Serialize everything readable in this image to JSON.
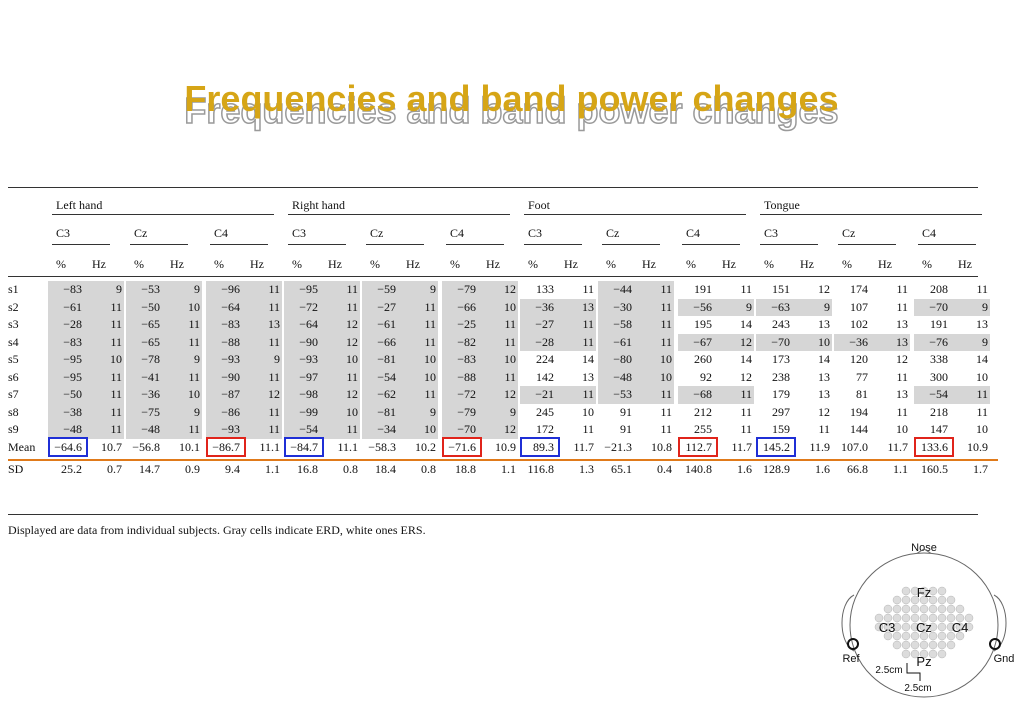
{
  "title": "Frequencies and band power changes",
  "table": {
    "groups": [
      "Left hand",
      "Right hand",
      "Foot",
      "Tongue"
    ],
    "channels": [
      "C3",
      "Cz",
      "C4"
    ],
    "units": [
      "%",
      "Hz"
    ],
    "rows": [
      {
        "label": "s1",
        "values": [
          "−83",
          "9",
          "−53",
          "9",
          "−96",
          "11",
          "−95",
          "11",
          "−59",
          "9",
          "−79",
          "12",
          "133",
          "11",
          "−44",
          "11",
          "191",
          "11",
          "151",
          "12",
          "174",
          "11",
          "208",
          "11"
        ]
      },
      {
        "label": "s2",
        "values": [
          "−61",
          "11",
          "−50",
          "10",
          "−64",
          "11",
          "−72",
          "11",
          "−27",
          "11",
          "−66",
          "10",
          "−36",
          "13",
          "−30",
          "11",
          "−56",
          "9",
          "−63",
          "9",
          "107",
          "11",
          "−70",
          "9"
        ]
      },
      {
        "label": "s3",
        "values": [
          "−28",
          "11",
          "−65",
          "11",
          "−83",
          "13",
          "−64",
          "12",
          "−61",
          "11",
          "−25",
          "11",
          "−27",
          "11",
          "−58",
          "11",
          "195",
          "14",
          "243",
          "13",
          "102",
          "13",
          "191",
          "13"
        ]
      },
      {
        "label": "s4",
        "values": [
          "−83",
          "11",
          "−65",
          "11",
          "−88",
          "11",
          "−90",
          "12",
          "−66",
          "11",
          "−82",
          "11",
          "−28",
          "11",
          "−61",
          "11",
          "−67",
          "12",
          "−70",
          "10",
          "−36",
          "13",
          "−76",
          "9"
        ]
      },
      {
        "label": "s5",
        "values": [
          "−95",
          "10",
          "−78",
          "9",
          "−93",
          "9",
          "−93",
          "10",
          "−81",
          "10",
          "−83",
          "10",
          "224",
          "14",
          "−80",
          "10",
          "260",
          "14",
          "173",
          "14",
          "120",
          "12",
          "338",
          "14"
        ]
      },
      {
        "label": "s6",
        "values": [
          "−95",
          "11",
          "−41",
          "11",
          "−90",
          "11",
          "−97",
          "11",
          "−54",
          "10",
          "−88",
          "11",
          "142",
          "13",
          "−48",
          "10",
          "92",
          "12",
          "238",
          "13",
          "77",
          "11",
          "300",
          "10"
        ]
      },
      {
        "label": "s7",
        "values": [
          "−50",
          "11",
          "−36",
          "10",
          "−87",
          "12",
          "−98",
          "12",
          "−62",
          "11",
          "−72",
          "12",
          "−21",
          "11",
          "−53",
          "11",
          "−68",
          "11",
          "179",
          "13",
          "81",
          "13",
          "−54",
          "11"
        ]
      },
      {
        "label": "s8",
        "values": [
          "−38",
          "11",
          "−75",
          "9",
          "−86",
          "11",
          "−99",
          "10",
          "−81",
          "9",
          "−79",
          "9",
          "245",
          "10",
          "91",
          "11",
          "212",
          "11",
          "297",
          "12",
          "194",
          "11",
          "218",
          "11"
        ]
      },
      {
        "label": "s9",
        "values": [
          "−48",
          "11",
          "−48",
          "11",
          "−93",
          "11",
          "−54",
          "11",
          "−34",
          "10",
          "−70",
          "12",
          "172",
          "11",
          "91",
          "11",
          "255",
          "11",
          "159",
          "11",
          "144",
          "10",
          "147",
          "10"
        ]
      },
      {
        "label": "Mean",
        "values": [
          "−64.6",
          "10.7",
          "−56.8",
          "10.1",
          "−86.7",
          "11.1",
          "−84.7",
          "11.1",
          "−58.3",
          "10.2",
          "−71.6",
          "10.9",
          "89.3",
          "11.7",
          "−21.3",
          "10.8",
          "112.7",
          "11.7",
          "145.2",
          "11.9",
          "107.0",
          "11.7",
          "133.6",
          "10.9"
        ]
      },
      {
        "label": "SD",
        "values": [
          "25.2",
          "0.7",
          "14.7",
          "0.9",
          "9.4",
          "1.1",
          "16.8",
          "0.8",
          "18.4",
          "0.8",
          "18.8",
          "1.1",
          "116.8",
          "1.3",
          "65.1",
          "0.4",
          "140.8",
          "1.6",
          "128.9",
          "1.6",
          "66.8",
          "1.1",
          "160.5",
          "1.7"
        ]
      }
    ],
    "caption": "Displayed are data from individual subjects. Gray cells indicate ERD, white ones ERS."
  },
  "highlights": {
    "blue_color": "#1f2fd6",
    "red_color": "#e0241b",
    "orange_line_color": "#e07a1a"
  },
  "electrode_diagram": {
    "nose_label": "Nose",
    "fz_label": "Fz",
    "c3_label": "C3",
    "cz_label": "Cz",
    "c4_label": "C4",
    "pz_label": "Pz",
    "ref_label": "Ref",
    "gnd_label": "Gnd",
    "spacing_h_label": "2.5cm",
    "spacing_v_label": "2.5cm"
  }
}
